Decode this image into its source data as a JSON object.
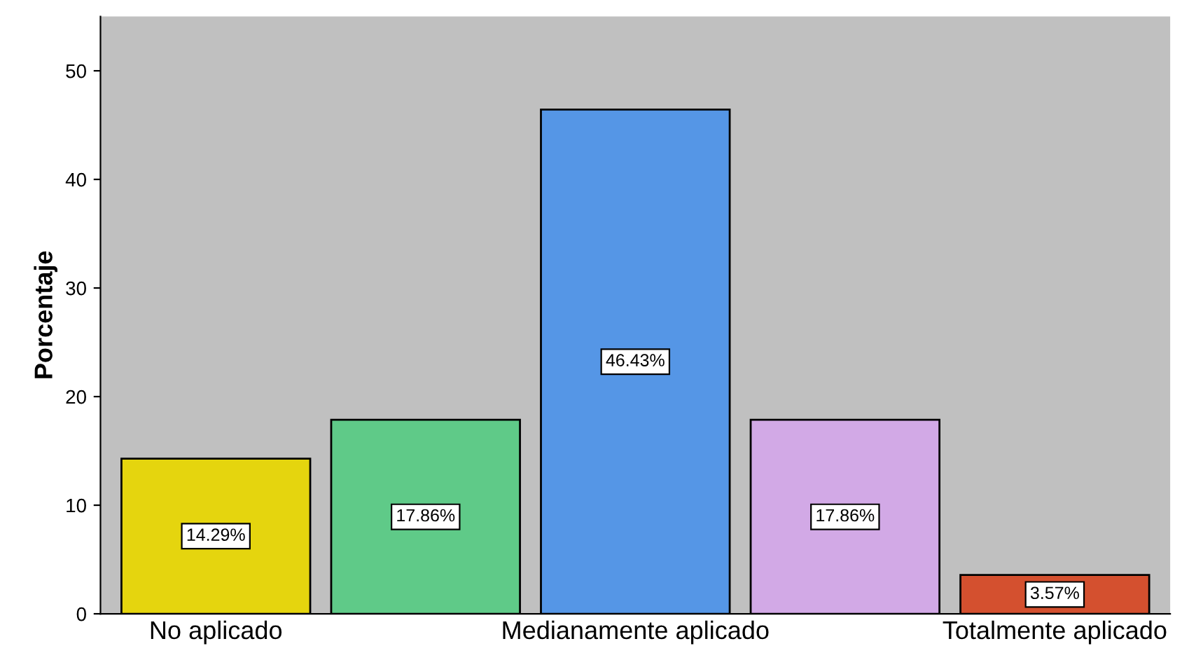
{
  "chart_data": {
    "type": "bar",
    "ylabel": "Porcentaje",
    "categories": [
      "No aplicado",
      null,
      "Medianamente aplicado",
      null,
      "Totalmente aplicado"
    ],
    "values": [
      14.29,
      17.86,
      46.43,
      17.86,
      3.57
    ],
    "colors": [
      "#e5d50e",
      "#5fca88",
      "#5596e6",
      "#d2a9e6",
      "#d4502f"
    ],
    "value_labels": [
      "14.29%",
      "17.86%",
      "46.43%",
      "17.86%",
      "3.57%"
    ],
    "ylim": [
      0,
      55
    ],
    "yticks": [
      0,
      10,
      20,
      30,
      40,
      50
    ],
    "grid": false
  }
}
